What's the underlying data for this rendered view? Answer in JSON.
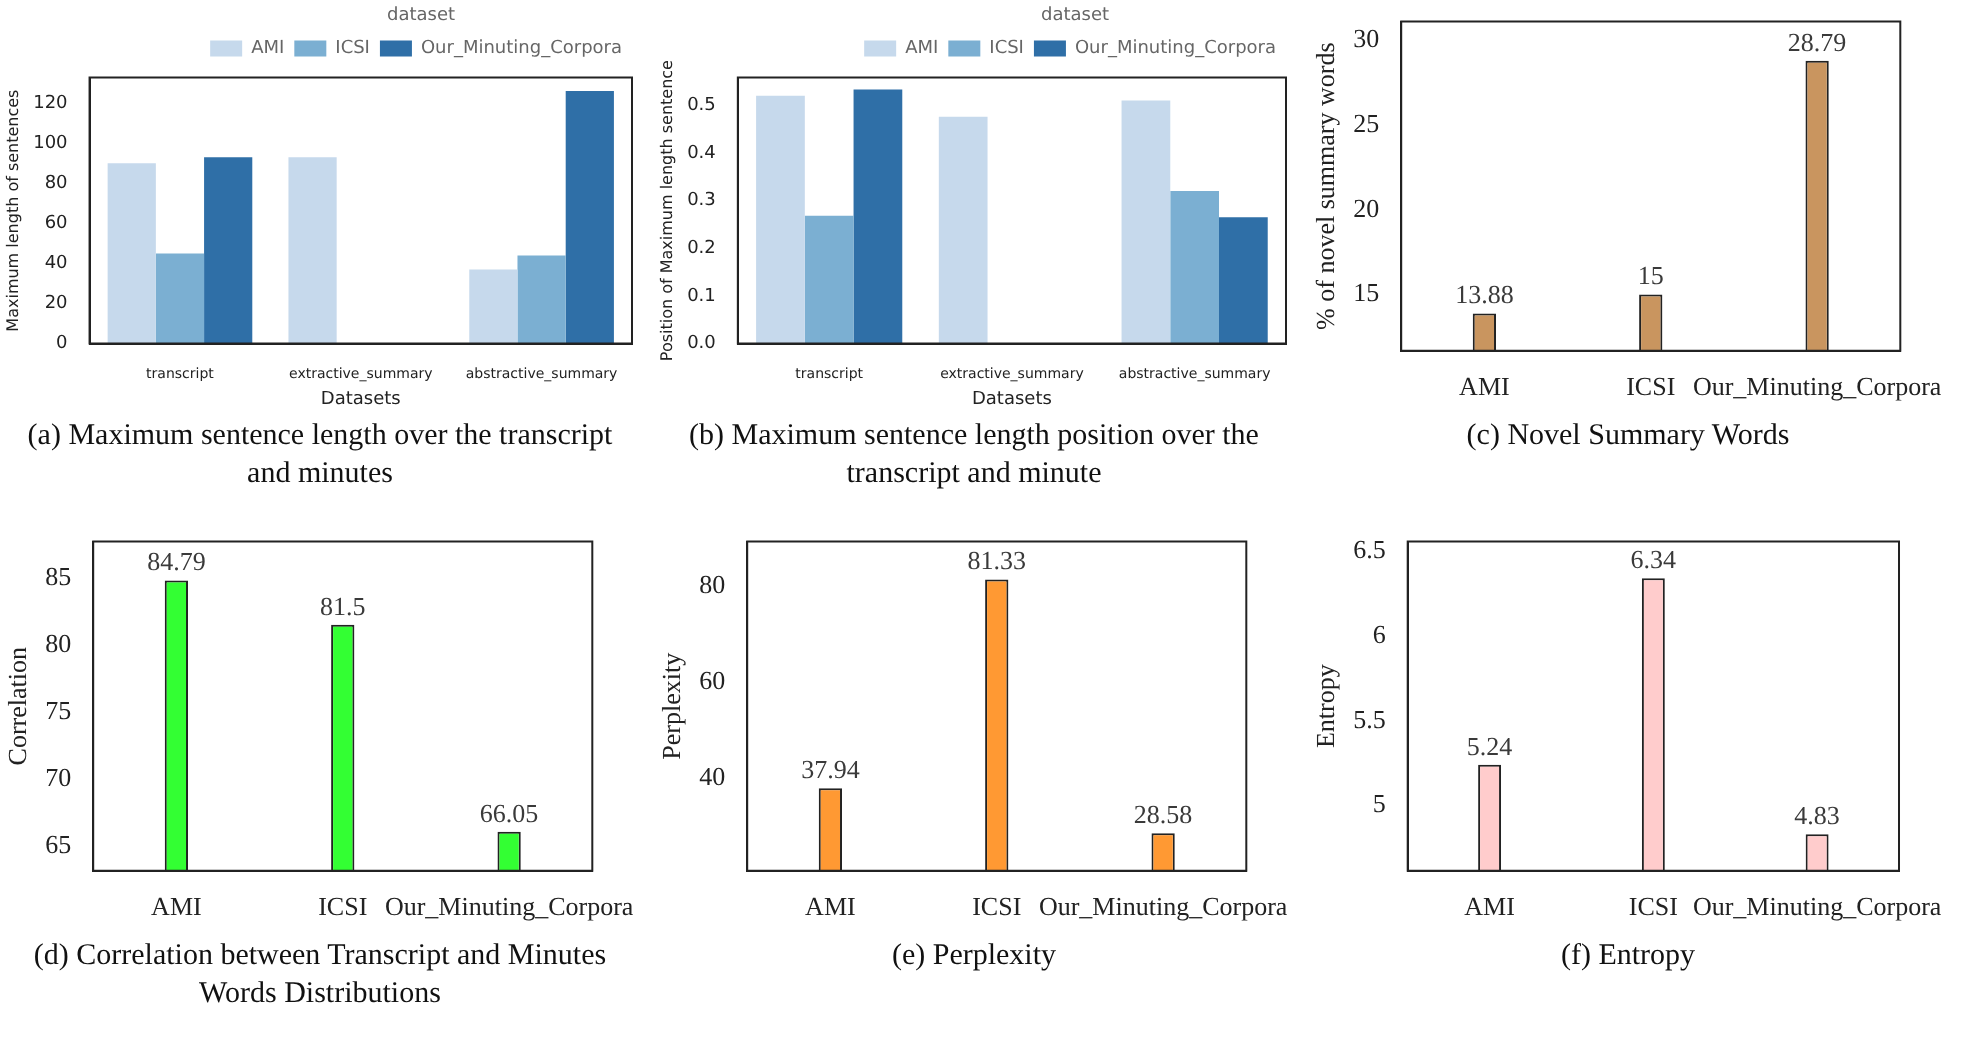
{
  "chart_data": [
    {
      "type": "bar",
      "title": "(a) Maximum sentence length over the transcript and minutes",
      "xlabel": "Datasets",
      "ylabel": "Maximum length of sentences",
      "categories": [
        "transcript",
        "extractive_summary",
        "abstractive_summary"
      ],
      "series": [
        {
          "name": "AMI",
          "color": "#c6d9ec",
          "values": [
            90,
            93,
            37
          ]
        },
        {
          "name": "ICSI",
          "color": "#7bafd2",
          "values": [
            45,
            null,
            44
          ]
        },
        {
          "name": "Our_Minuting_Corpora",
          "color": "#2f6fa7",
          "values": [
            93,
            null,
            126
          ]
        }
      ],
      "ylim": [
        0,
        132.7
      ],
      "yticks": [
        0,
        20,
        40,
        60,
        80,
        100,
        120
      ],
      "legend": "top right",
      "legend_title": "dataset",
      "grid": false
    },
    {
      "type": "bar",
      "title": "(b) Maximum sentence length position over the transcript and minute",
      "xlabel": "Datasets",
      "ylabel": "Position of Maximum length sentence",
      "categories": [
        "transcript",
        "extractive_summary",
        "abstractive_summary"
      ],
      "series": [
        {
          "name": "AMI",
          "color": "#c6d9ec",
          "values": [
            0.52,
            0.476,
            0.51
          ]
        },
        {
          "name": "ICSI",
          "color": "#7bafd2",
          "values": [
            0.268,
            null,
            0.32
          ]
        },
        {
          "name": "Our_Minuting_Corpora",
          "color": "#2f6fa7",
          "values": [
            0.533,
            null,
            0.265
          ]
        }
      ],
      "ylim": [
        0,
        0.558
      ],
      "yticks": [
        {
          "value": 0,
          "label": "0.0"
        },
        0.1,
        0.2,
        0.3,
        0.4,
        0.5
      ],
      "legend": "top right",
      "legend_title": "dataset",
      "grid": false
    },
    {
      "type": "bar",
      "title": "(c) Novel Summary Words",
      "ylabel": "% of novel summary words",
      "categories": [
        "AMI",
        "ICSI",
        "Our_Minuting_Corpora"
      ],
      "values": [
        13.88,
        15,
        28.79
      ],
      "color": "#c9955f",
      "ylim": [
        11.68,
        31.1
      ],
      "yticks": [
        15,
        20,
        25,
        30
      ],
      "data_labels": true,
      "grid": false
    },
    {
      "type": "bar",
      "title": "(d) Correlation between Transcript and Minutes Words Distributions",
      "ylabel": "Correlation",
      "categories": [
        "AMI",
        "ICSI",
        "Our_Minuting_Corpora"
      ],
      "values": [
        84.79,
        81.5,
        66.05
      ],
      "color": "#33ff33",
      "ylim": [
        63.14,
        87.7
      ],
      "yticks": [
        65,
        70,
        75,
        80,
        85
      ],
      "data_labels": true,
      "grid": false
    },
    {
      "type": "bar",
      "title": "(e) Perplexity",
      "ylabel": "Perplexity",
      "categories": [
        "AMI",
        "ICSI",
        "Our_Minuting_Corpora"
      ],
      "values": [
        37.94,
        81.33,
        28.58
      ],
      "color": "#ff9933",
      "ylim": [
        20.8,
        89.2
      ],
      "yticks": [
        40,
        60,
        80
      ],
      "data_labels": true,
      "grid": false
    },
    {
      "type": "bar",
      "title": "(f) Entropy",
      "ylabel": "Entropy",
      "categories": [
        "AMI",
        "ICSI",
        "Our_Minuting_Corpora"
      ],
      "values": [
        5.24,
        6.34,
        4.83
      ],
      "color": "#ffcccc",
      "ylim": [
        4.614,
        6.557
      ],
      "yticks": [
        5,
        5.5,
        6,
        6.5
      ],
      "data_labels": true,
      "grid": false
    }
  ]
}
